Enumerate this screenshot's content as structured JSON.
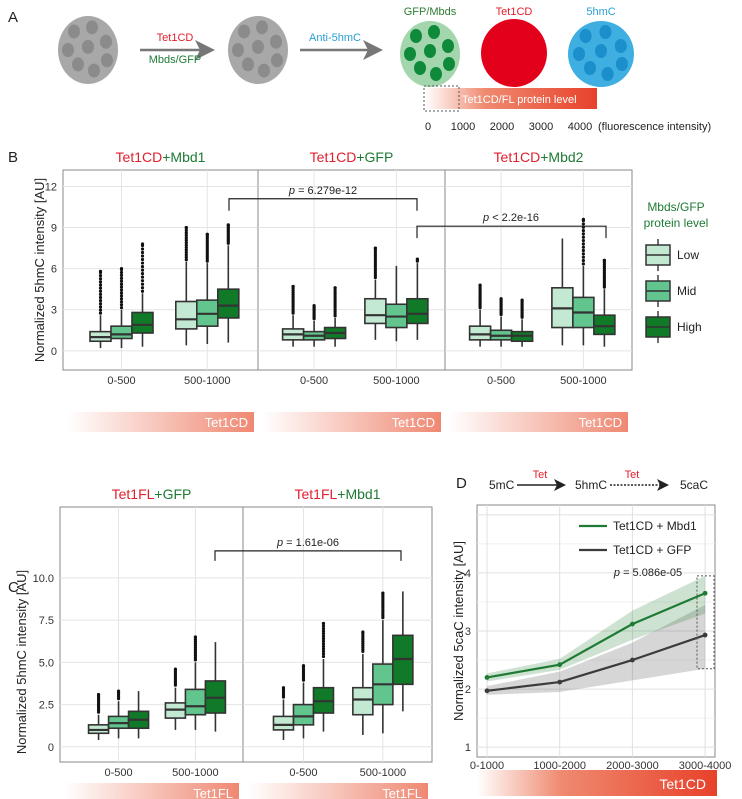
{
  "colors": {
    "red": "#e0202e",
    "green": "#1e7b34",
    "blue": "#2a9fd6",
    "low": "#c3e9d3",
    "mid": "#63c58e",
    "high": "#117a28",
    "gray_line": "#3b3b3b",
    "gradient_end": "#e8412a"
  },
  "panel_a": {
    "label": "A",
    "arrow1_top": "Tet1CD",
    "arrow1_bottom": "Mbds/GFP",
    "arrow2_label": "Anti-5hmC",
    "cell_labels": [
      "GFP/Mbds",
      "Tet1CD",
      "5hmC"
    ],
    "bar_label": "Tet1CD/FL protein level",
    "scale_ticks": [
      "0",
      "1000",
      "2000",
      "3000",
      "4000"
    ],
    "scale_unit": "(fluorescence intensity)"
  },
  "chart_data": [
    {
      "panel": "B",
      "type": "box",
      "ylabel": "Normalized 5hmC intensity [AU]",
      "yticks": [
        "0",
        "3",
        "6",
        "9",
        "12"
      ],
      "ytick_values": [
        0,
        3,
        6,
        9,
        12
      ],
      "ylim": [
        -1.4,
        13.2
      ],
      "grid": true,
      "categories": [
        "0-500",
        "500-1000"
      ],
      "bar_label": "Tet1CD",
      "legend": {
        "title1": "Mbds/GFP",
        "title2": "protein level",
        "items": [
          "Low",
          "Mid",
          "High"
        ],
        "placement": "right"
      },
      "facets": [
        {
          "title_a": "Tet1CD",
          "title_b": "+Mbd1",
          "boxes": [
            [
              {
                "median": 1.0,
                "q1": 0.7,
                "q3": 1.4,
                "whisker_low": 0.2,
                "whisker_high": 2.6,
                "outlier_max": 5.8
              },
              {
                "median": 1.2,
                "q1": 0.9,
                "q3": 1.8,
                "whisker_low": 0.2,
                "whisker_high": 3.0,
                "outlier_max": 6.0
              },
              {
                "median": 1.9,
                "q1": 1.3,
                "q3": 2.8,
                "whisker_low": 0.3,
                "whisker_high": 4.2,
                "outlier_max": 7.8
              }
            ],
            [
              {
                "median": 2.3,
                "q1": 1.6,
                "q3": 3.6,
                "whisker_low": 0.4,
                "whisker_high": 6.5,
                "outlier_max": 9.0
              },
              {
                "median": 2.7,
                "q1": 1.8,
                "q3": 3.7,
                "whisker_low": 0.5,
                "whisker_high": 6.4,
                "outlier_max": 8.5
              },
              {
                "median": 3.3,
                "q1": 2.4,
                "q3": 4.5,
                "whisker_low": 0.6,
                "whisker_high": 7.7,
                "outlier_max": 9.2
              }
            ]
          ]
        },
        {
          "title_a": "Tet1CD",
          "title_b": "+GFP",
          "boxes": [
            [
              {
                "median": 1.2,
                "q1": 0.8,
                "q3": 1.6,
                "whisker_low": 0.3,
                "whisker_high": 2.6,
                "outlier_max": 4.7
              },
              {
                "median": 1.1,
                "q1": 0.8,
                "q3": 1.4,
                "whisker_low": 0.3,
                "whisker_high": 2.2,
                "outlier_max": 3.3
              },
              {
                "median": 1.3,
                "q1": 0.9,
                "q3": 1.7,
                "whisker_low": 0.3,
                "whisker_high": 2.4,
                "outlier_max": 4.6
              }
            ],
            [
              {
                "median": 2.6,
                "q1": 2.0,
                "q3": 3.8,
                "whisker_low": 0.8,
                "whisker_high": 5.2,
                "outlier_max": 7.5
              },
              {
                "median": 2.5,
                "q1": 1.7,
                "q3": 3.4,
                "whisker_low": 0.7,
                "whisker_high": 6.2,
                "outlier_max": 6.2
              },
              {
                "median": 2.7,
                "q1": 2.0,
                "q3": 3.8,
                "whisker_low": 0.8,
                "whisker_high": 6.4,
                "outlier_max": 6.7
              }
            ]
          ]
        },
        {
          "title_a": "Tet1CD",
          "title_b": "+Mbd2",
          "boxes": [
            [
              {
                "median": 1.2,
                "q1": 0.8,
                "q3": 1.8,
                "whisker_low": 0.3,
                "whisker_high": 3.0,
                "outlier_max": 4.8
              },
              {
                "median": 1.1,
                "q1": 0.8,
                "q3": 1.5,
                "whisker_low": 0.3,
                "whisker_high": 2.5,
                "outlier_max": 3.8
              },
              {
                "median": 1.1,
                "q1": 0.7,
                "q3": 1.4,
                "whisker_low": 0.3,
                "whisker_high": 2.3,
                "outlier_max": 3.7
              }
            ],
            [
              {
                "median": 3.1,
                "q1": 1.7,
                "q3": 4.6,
                "whisker_low": 0.4,
                "whisker_high": 8.2,
                "outlier_max": 8.2
              },
              {
                "median": 2.8,
                "q1": 1.7,
                "q3": 3.9,
                "whisker_low": 0.4,
                "whisker_high": 6.2,
                "outlier_max": 9.6
              },
              {
                "median": 1.8,
                "q1": 1.2,
                "q3": 2.6,
                "whisker_low": 0.3,
                "whisker_high": 4.5,
                "outlier_max": 6.6
              }
            ]
          ]
        }
      ],
      "comparisons": [
        {
          "label_p": "p",
          "label_rest": " = 6.279e-12"
        },
        {
          "label_p": "p",
          "label_rest": " < 2.2e-16"
        }
      ]
    },
    {
      "panel": "C",
      "type": "box",
      "ylabel": "Normalized 5hmC intensity [AU]",
      "yticks": [
        "0",
        "2.5",
        "5.0",
        "7.5",
        "10.0"
      ],
      "ytick_values": [
        0,
        2.5,
        5,
        7.5,
        10
      ],
      "ylim": [
        -0.9,
        14.2
      ],
      "grid": true,
      "categories": [
        "0-500",
        "500-1000"
      ],
      "bar_label": "Tet1FL",
      "facets": [
        {
          "title_a": "Tet1FL",
          "title_b": "+GFP",
          "boxes": [
            [
              {
                "median": 1.0,
                "q1": 0.8,
                "q3": 1.3,
                "whisker_low": 0.4,
                "whisker_high": 1.9,
                "outlier_max": 3.1
              },
              {
                "median": 1.4,
                "q1": 1.1,
                "q3": 1.8,
                "whisker_low": 0.5,
                "whisker_high": 2.7,
                "outlier_max": 3.3
              },
              {
                "median": 1.6,
                "q1": 1.1,
                "q3": 2.1,
                "whisker_low": 0.5,
                "whisker_high": 3.3,
                "outlier_max": 3.3
              }
            ],
            [
              {
                "median": 2.2,
                "q1": 1.7,
                "q3": 2.6,
                "whisker_low": 1.0,
                "whisker_high": 3.5,
                "outlier_max": 4.6
              },
              {
                "median": 2.4,
                "q1": 1.9,
                "q3": 3.4,
                "whisker_low": 1.0,
                "whisker_high": 5.0,
                "outlier_max": 6.5
              },
              {
                "median": 2.9,
                "q1": 2.0,
                "q3": 3.9,
                "whisker_low": 0.9,
                "whisker_high": 6.2,
                "outlier_max": 6.2
              }
            ]
          ]
        },
        {
          "title_a": "Tet1FL",
          "title_b": "+Mbd1",
          "boxes": [
            [
              {
                "median": 1.3,
                "q1": 1.0,
                "q3": 1.8,
                "whisker_low": 0.4,
                "whisker_high": 2.8,
                "outlier_max": 3.5
              },
              {
                "median": 1.8,
                "q1": 1.3,
                "q3": 2.5,
                "whisker_low": 0.5,
                "whisker_high": 3.8,
                "outlier_max": 4.8
              },
              {
                "median": 2.7,
                "q1": 2.0,
                "q3": 3.5,
                "whisker_low": 0.9,
                "whisker_high": 5.2,
                "outlier_max": 7.3
              }
            ],
            [
              {
                "median": 2.8,
                "q1": 1.9,
                "q3": 3.5,
                "whisker_low": 0.7,
                "whisker_high": 5.5,
                "outlier_max": 6.8
              },
              {
                "median": 3.7,
                "q1": 2.5,
                "q3": 4.9,
                "whisker_low": 0.8,
                "whisker_high": 7.5,
                "outlier_max": 9.1
              },
              {
                "median": 5.2,
                "q1": 3.7,
                "q3": 6.6,
                "whisker_low": 2.1,
                "whisker_high": 9.2,
                "outlier_max": 9.2
              }
            ]
          ]
        }
      ],
      "comparisons": [
        {
          "label_p": "p",
          "label_rest": " = 1.61e-06"
        }
      ]
    },
    {
      "panel": "D",
      "type": "line",
      "scheme": {
        "s1": "5mC",
        "s2": "5hmC",
        "s3": "5caC",
        "enzyme": "Tet"
      },
      "ylabel": "Normalized 5caC intensity [AU]",
      "yticks": [
        "1",
        "2",
        "3",
        "4"
      ],
      "ytick_values": [
        1,
        2,
        3,
        4
      ],
      "ylim": [
        0.83,
        5.17
      ],
      "grid": true,
      "categories": [
        "0-1000",
        "1000-2000",
        "2000-3000",
        "3000-4000"
      ],
      "bar_label": "Tet1CD",
      "legend_placement": "top-right",
      "series": [
        {
          "name": "Tet1CD + Mbd1",
          "color": "#1e7b34",
          "values": [
            2.2,
            2.42,
            3.12,
            3.65
          ],
          "band_low": [
            2.13,
            2.33,
            2.85,
            3.3
          ],
          "band_high": [
            2.27,
            2.52,
            3.35,
            3.95
          ]
        },
        {
          "name": "Tet1CD + GFP",
          "color": "#3b3b3b",
          "values": [
            1.97,
            2.12,
            2.5,
            2.93
          ],
          "band_low": [
            1.9,
            1.95,
            2.15,
            2.35
          ],
          "band_high": [
            2.05,
            2.3,
            2.8,
            3.45
          ]
        }
      ],
      "annotation": {
        "label_p": "p",
        "label_rest": " = 5.086e-05"
      }
    }
  ]
}
